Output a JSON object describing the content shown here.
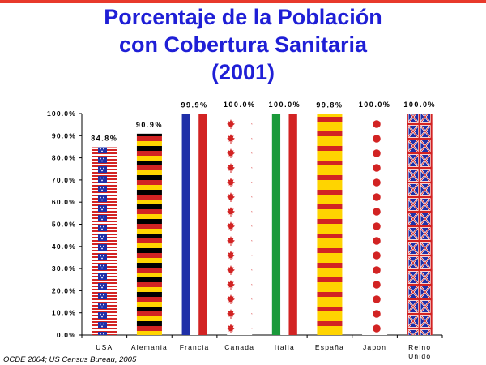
{
  "title": {
    "line1": "Porcentaje de la Población",
    "line2": "con Cobertura Sanitaria",
    "line3": "(2001)"
  },
  "source": "OCDE 2004; US Census Bureau, 2005",
  "chart_data": {
    "type": "bar",
    "title": "Porcentaje de la Población con Cobertura Sanitaria (2001)",
    "categories": [
      "USA",
      "Alemania",
      "Francia",
      "Canada",
      "Italia",
      "España",
      "Japon",
      "Reino Unido"
    ],
    "values": [
      84.8,
      90.9,
      99.9,
      100.0,
      100.0,
      99.8,
      100.0,
      100.0
    ],
    "value_labels": [
      "84.8%",
      "90.9%",
      "99.9%",
      "100.0%",
      "100.0%",
      "99.8%",
      "100.0%",
      "100.0%"
    ],
    "ylim": [
      0,
      100
    ],
    "yticks": [
      0,
      10,
      20,
      30,
      40,
      50,
      60,
      70,
      80,
      90,
      100
    ],
    "ytick_labels": [
      "0.0%",
      "10.0%",
      "20.0%",
      "30.0%",
      "40.0%",
      "50.0%",
      "60.0%",
      "70.0%",
      "80.0%",
      "90.0%",
      "100.0%"
    ],
    "bar_patterns": [
      "flag-usa",
      "flag-germany",
      "flag-france",
      "flag-canada",
      "flag-italy",
      "flag-spain",
      "flag-japan",
      "flag-uk"
    ],
    "grid": false,
    "legend": "none"
  },
  "colors": {
    "title": "#1f1fd6",
    "top_line": "#e8392b",
    "flag_red": "#d22323",
    "flag_blue": "#1f2fa8",
    "flag_yellow": "#ffd400",
    "flag_green": "#1a9a3a",
    "flag_black": "#000000"
  }
}
